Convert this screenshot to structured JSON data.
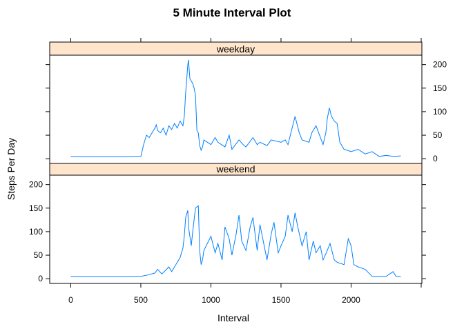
{
  "chart_data": {
    "type": "line",
    "title": "5 Minute Interval Plot",
    "xlabel": "Interval",
    "ylabel": "Steps Per Day",
    "xlim": [
      -150,
      2505
    ],
    "ylim": [
      -10,
      220
    ],
    "x_ticks": [
      0,
      500,
      1000,
      1500,
      2000
    ],
    "y_ticks": [
      0,
      50,
      100,
      150,
      200
    ],
    "line_color": "#0080ff",
    "strip_color": "#ffe5cc",
    "panels": [
      {
        "name": "weekday",
        "x": [
          0,
          100,
          200,
          300,
          400,
          500,
          520,
          540,
          560,
          580,
          600,
          610,
          620,
          640,
          660,
          680,
          700,
          720,
          740,
          760,
          780,
          800,
          810,
          820,
          830,
          835,
          840,
          845,
          850,
          860,
          870,
          880,
          890,
          900,
          910,
          920,
          930,
          940,
          950,
          1000,
          1030,
          1050,
          1100,
          1130,
          1150,
          1200,
          1230,
          1250,
          1300,
          1330,
          1350,
          1400,
          1430,
          1500,
          1530,
          1550,
          1600,
          1630,
          1650,
          1700,
          1720,
          1750,
          1800,
          1820,
          1830,
          1845,
          1860,
          1880,
          1900,
          1920,
          1950,
          2000,
          2050,
          2100,
          2150,
          2200,
          2250,
          2300,
          2355
        ],
        "y": [
          5,
          4,
          4,
          4,
          4,
          5,
          30,
          50,
          45,
          55,
          65,
          72,
          60,
          55,
          65,
          50,
          70,
          62,
          75,
          65,
          80,
          70,
          90,
          140,
          180,
          200,
          210,
          190,
          170,
          165,
          160,
          150,
          135,
          60,
          55,
          28,
          18,
          25,
          40,
          30,
          45,
          35,
          25,
          50,
          20,
          40,
          30,
          25,
          45,
          30,
          35,
          28,
          40,
          35,
          40,
          30,
          90,
          55,
          40,
          35,
          55,
          70,
          30,
          55,
          85,
          108,
          90,
          80,
          75,
          35,
          20,
          15,
          20,
          10,
          15,
          5,
          7,
          5,
          6
        ]
      },
      {
        "name": "weekend",
        "x": [
          0,
          100,
          200,
          300,
          400,
          500,
          550,
          600,
          620,
          650,
          700,
          720,
          750,
          780,
          800,
          810,
          820,
          835,
          840,
          850,
          860,
          870,
          880,
          890,
          910,
          920,
          930,
          940,
          950,
          1000,
          1030,
          1050,
          1080,
          1100,
          1130,
          1150,
          1180,
          1200,
          1220,
          1250,
          1280,
          1300,
          1330,
          1350,
          1380,
          1400,
          1430,
          1450,
          1480,
          1500,
          1530,
          1550,
          1580,
          1600,
          1620,
          1650,
          1680,
          1700,
          1730,
          1750,
          1780,
          1800,
          1830,
          1850,
          1880,
          1900,
          1950,
          1980,
          2000,
          2020,
          2050,
          2100,
          2150,
          2200,
          2250,
          2300,
          2320,
          2355
        ],
        "y": [
          5,
          4,
          4,
          4,
          4,
          5,
          8,
          12,
          20,
          10,
          25,
          15,
          30,
          45,
          65,
          90,
          130,
          145,
          110,
          90,
          70,
          100,
          125,
          150,
          155,
          60,
          30,
          40,
          60,
          90,
          55,
          75,
          40,
          110,
          85,
          50,
          95,
          135,
          80,
          60,
          110,
          130,
          60,
          115,
          70,
          40,
          95,
          120,
          55,
          70,
          90,
          135,
          100,
          140,
          110,
          70,
          100,
          40,
          80,
          55,
          70,
          40,
          60,
          75,
          40,
          35,
          30,
          85,
          70,
          30,
          25,
          20,
          5,
          5,
          5,
          15,
          5,
          5
        ]
      }
    ]
  }
}
